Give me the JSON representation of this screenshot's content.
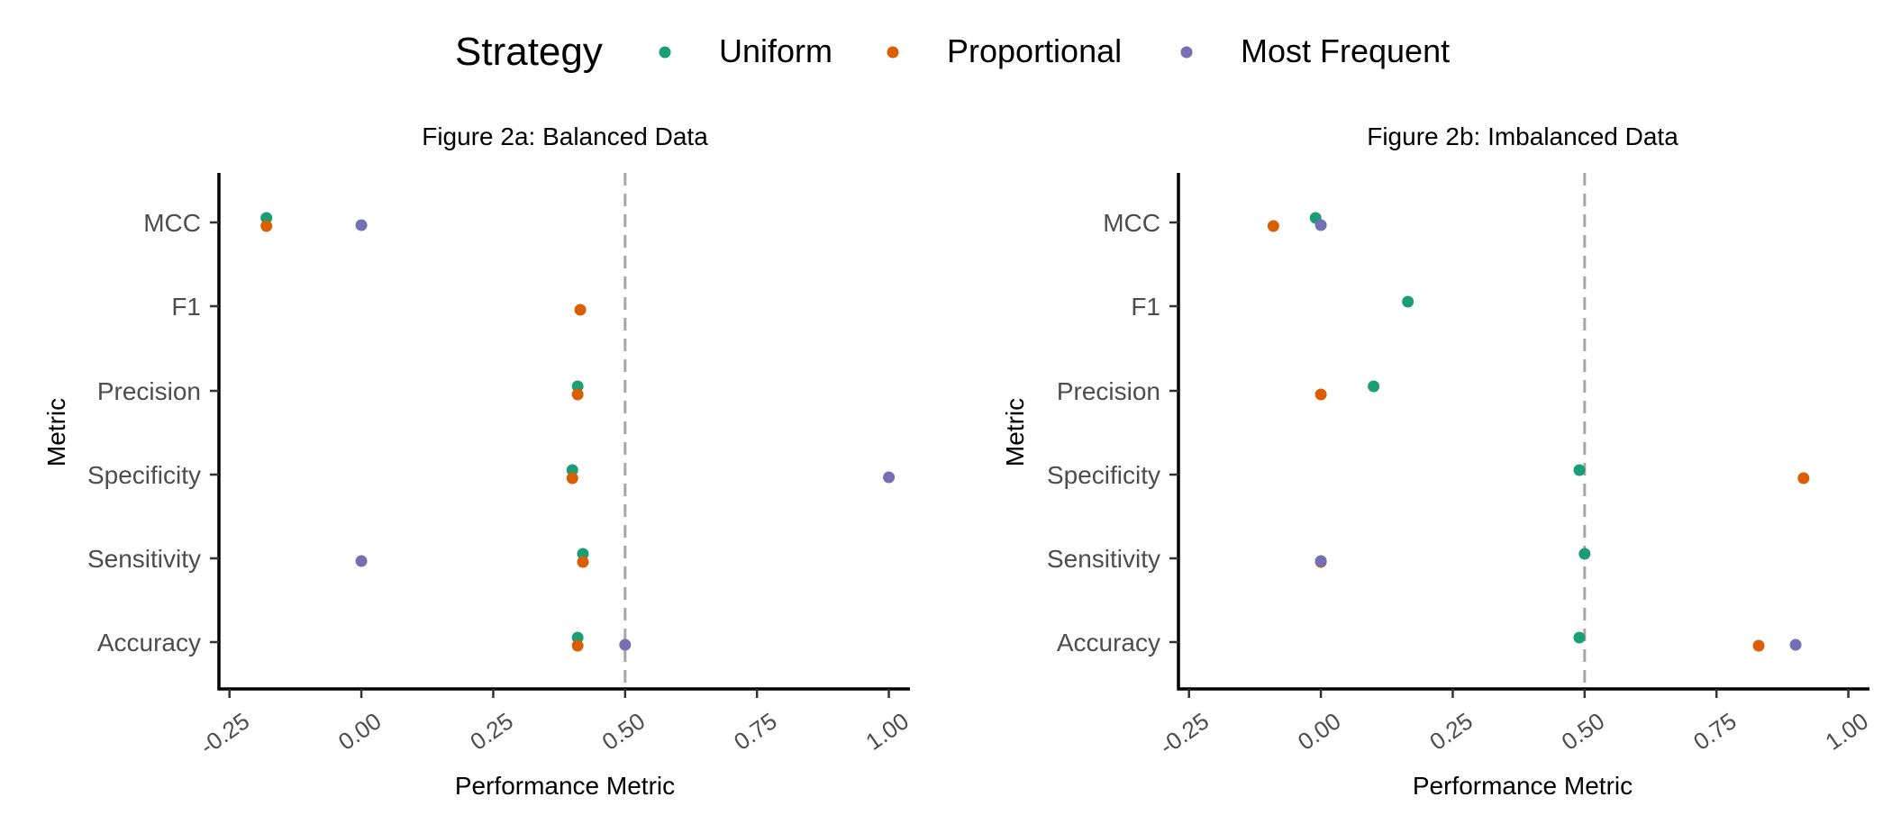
{
  "legend": {
    "title": "Strategy",
    "items": [
      {
        "label": "Uniform",
        "color": "#1b9e77"
      },
      {
        "label": "Proportional",
        "color": "#d95f02"
      },
      {
        "label": "Most Frequent",
        "color": "#7570b3"
      }
    ]
  },
  "chart_data": [
    {
      "type": "scatter",
      "title": "Figure 2a: Balanced Data",
      "xlabel": "Performance Metric",
      "ylabel": "Metric",
      "xlim": [
        -0.27,
        1.04
      ],
      "xticks": [
        -0.25,
        0.0,
        0.25,
        0.5,
        0.75,
        1.0
      ],
      "xtick_labels": [
        "-0.25",
        "0.00",
        "0.25",
        "0.50",
        "0.75",
        "1.00"
      ],
      "categories": [
        "MCC",
        "F1",
        "Precision",
        "Specificity",
        "Sensitivity",
        "Accuracy"
      ],
      "reference_line": 0.5,
      "grid": false,
      "series": [
        {
          "name": "Uniform",
          "values": {
            "MCC": -0.18,
            "Precision": 0.41,
            "Specificity": 0.4,
            "Sensitivity": 0.42,
            "Accuracy": 0.41
          }
        },
        {
          "name": "Proportional",
          "values": {
            "MCC": -0.18,
            "F1": 0.415,
            "Precision": 0.41,
            "Specificity": 0.4,
            "Sensitivity": 0.42,
            "Accuracy": 0.41
          }
        },
        {
          "name": "Most Frequent",
          "values": {
            "MCC": 0.0,
            "Specificity": 1.0,
            "Sensitivity": 0.0,
            "Accuracy": 0.5
          }
        }
      ]
    },
    {
      "type": "scatter",
      "title": "Figure 2b: Imbalanced Data",
      "xlabel": "Performance Metric",
      "ylabel": "Metric",
      "xlim": [
        -0.27,
        1.04
      ],
      "xticks": [
        -0.25,
        0.0,
        0.25,
        0.5,
        0.75,
        1.0
      ],
      "xtick_labels": [
        "-0.25",
        "0.00",
        "0.25",
        "0.50",
        "0.75",
        "1.00"
      ],
      "categories": [
        "MCC",
        "F1",
        "Precision",
        "Specificity",
        "Sensitivity",
        "Accuracy"
      ],
      "reference_line": 0.5,
      "grid": false,
      "series": [
        {
          "name": "Uniform",
          "values": {
            "MCC": -0.01,
            "F1": 0.165,
            "Precision": 0.1,
            "Specificity": 0.49,
            "Sensitivity": 0.5,
            "Accuracy": 0.49
          }
        },
        {
          "name": "Proportional",
          "values": {
            "MCC": -0.09,
            "Precision": 0.0,
            "Specificity": 0.915,
            "Sensitivity": 0.0,
            "Accuracy": 0.83
          }
        },
        {
          "name": "Most Frequent",
          "values": {
            "MCC": 0.0,
            "Sensitivity": 0.0,
            "Accuracy": 0.9
          }
        }
      ]
    }
  ]
}
